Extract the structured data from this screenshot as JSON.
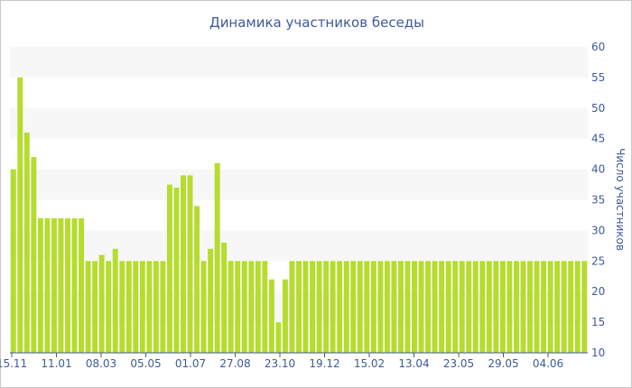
{
  "chart_data": {
    "type": "bar",
    "title": "Динамика участников беседы",
    "ylabel": "Число участников",
    "xlabel": "",
    "ylim": [
      10,
      60
    ],
    "yticks": [
      10,
      15,
      20,
      25,
      30,
      35,
      40,
      45,
      50,
      55,
      60
    ],
    "x_tick_labels": [
      "15.11",
      "11.01",
      "08.03",
      "05.05",
      "01.07",
      "27.08",
      "23.10",
      "19.12",
      "15.02",
      "13.04",
      "23.05",
      "29.05",
      "04.06"
    ],
    "grid": "horizontal-bands",
    "colors": {
      "bar": "#b5dc2e",
      "band": "#f7f7f7",
      "text": "#3e5a9a",
      "axis": "#3e5a9a"
    },
    "values": [
      40,
      55,
      46,
      42,
      32,
      32,
      32,
      32,
      32,
      32,
      32,
      25,
      25,
      26,
      25,
      27,
      25,
      25,
      25,
      25,
      25,
      25,
      25,
      37.5,
      37,
      39,
      39,
      34,
      25,
      27,
      41,
      28,
      25,
      25,
      25,
      25,
      25,
      25,
      22,
      15,
      22,
      25,
      25,
      25,
      25,
      25,
      25,
      25,
      25,
      25,
      25,
      25,
      25,
      25,
      25,
      25,
      25,
      25,
      25,
      25,
      25,
      25,
      25,
      25,
      25,
      25,
      25,
      25,
      25,
      25,
      25,
      25,
      25,
      25,
      25,
      25,
      25,
      25,
      25,
      25,
      25,
      25,
      25,
      25,
      25
    ]
  }
}
